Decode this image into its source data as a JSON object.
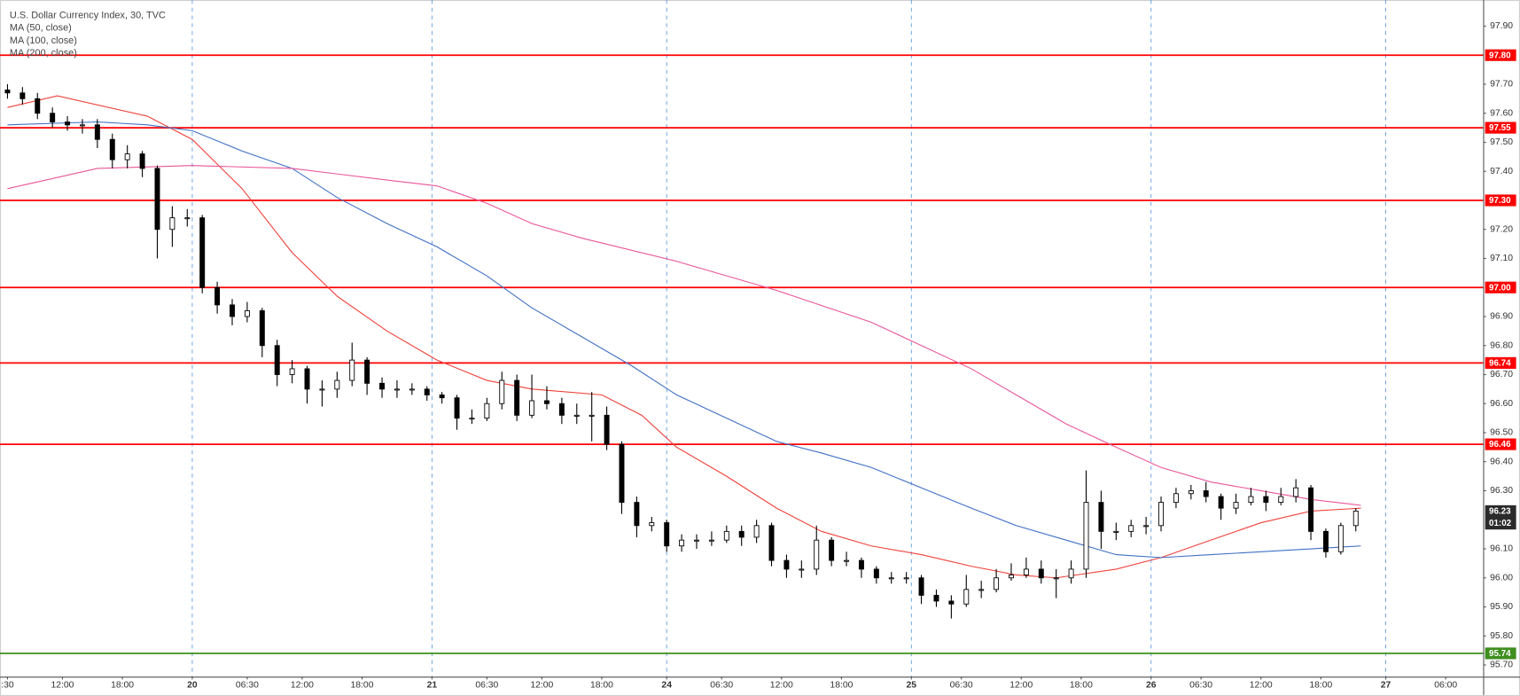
{
  "chart_data": {
    "type": "candlestick",
    "title": "U.S. Dollar Currency Index, 30, TVC",
    "x": [
      0,
      3,
      6,
      9,
      12,
      15,
      18,
      21,
      24,
      27,
      30,
      33,
      36,
      39,
      42,
      45,
      48,
      51,
      54,
      57,
      60,
      63,
      66,
      69,
      72,
      75,
      78,
      81,
      84,
      87,
      90,
      93,
      96,
      99,
      102,
      105,
      108,
      111,
      114,
      117,
      120,
      123,
      126,
      129,
      132,
      135,
      138,
      141,
      144,
      147,
      150,
      153,
      156,
      159,
      162,
      165,
      168,
      171,
      174,
      177,
      180,
      183,
      186,
      189,
      192,
      195,
      198,
      201,
      204,
      207,
      210,
      213,
      216,
      219,
      222,
      225,
      228,
      231,
      234,
      237,
      240,
      243,
      246,
      249,
      252,
      255,
      258,
      261,
      264,
      267,
      270
    ],
    "open": [
      97.68,
      97.67,
      97.65,
      97.6,
      97.57,
      97.56,
      97.56,
      97.51,
      97.44,
      97.46,
      97.41,
      97.2,
      97.24,
      97.24,
      97.0,
      96.94,
      96.9,
      96.92,
      96.8,
      96.7,
      96.72,
      96.65,
      96.65,
      96.68,
      96.75,
      96.67,
      96.65,
      96.65,
      96.65,
      96.63,
      96.62,
      96.55,
      96.55,
      96.6,
      96.68,
      96.56,
      96.61,
      96.6,
      96.56,
      96.56,
      96.56,
      96.46,
      96.26,
      96.18,
      96.19,
      96.11,
      96.13,
      96.13,
      96.13,
      96.16,
      96.14,
      96.18,
      96.06,
      96.03,
      96.03,
      96.13,
      96.06,
      96.06,
      96.03,
      96.0,
      96.0,
      96.0,
      95.94,
      95.92,
      95.91,
      95.96,
      95.96,
      96.0,
      96.01,
      96.03,
      96.0,
      96.0,
      96.03,
      96.26,
      96.16,
      96.16,
      96.18,
      96.18,
      96.26,
      96.29,
      96.3,
      96.28,
      96.24,
      96.26,
      96.28,
      96.26,
      96.28,
      96.31,
      96.16,
      96.09,
      96.18
    ],
    "high": [
      97.7,
      97.69,
      97.67,
      97.62,
      97.59,
      97.58,
      97.58,
      97.53,
      97.49,
      97.47,
      97.42,
      97.28,
      97.27,
      97.25,
      97.02,
      96.96,
      96.95,
      96.93,
      96.82,
      96.75,
      96.73,
      96.68,
      96.71,
      96.81,
      96.76,
      96.69,
      96.68,
      96.67,
      96.66,
      96.64,
      96.63,
      96.58,
      96.62,
      96.71,
      96.7,
      96.7,
      96.66,
      96.62,
      96.6,
      96.64,
      96.59,
      96.47,
      96.28,
      96.21,
      96.2,
      96.15,
      96.15,
      96.16,
      96.18,
      96.18,
      96.2,
      96.19,
      96.08,
      96.06,
      96.18,
      96.14,
      96.09,
      96.07,
      96.04,
      96.02,
      96.02,
      96.01,
      95.96,
      95.94,
      96.01,
      95.99,
      96.03,
      96.05,
      96.07,
      96.06,
      96.03,
      96.06,
      96.37,
      96.3,
      96.19,
      96.2,
      96.21,
      96.28,
      96.31,
      96.32,
      96.33,
      96.29,
      96.29,
      96.31,
      96.3,
      96.31,
      96.34,
      96.32,
      96.17,
      96.19,
      96.24
    ],
    "low": [
      97.65,
      97.63,
      97.58,
      97.55,
      97.54,
      97.53,
      97.48,
      97.41,
      97.41,
      97.38,
      97.1,
      97.14,
      97.21,
      96.98,
      96.91,
      96.87,
      96.88,
      96.76,
      96.66,
      96.67,
      96.6,
      96.59,
      96.62,
      96.66,
      96.63,
      96.62,
      96.62,
      96.63,
      96.61,
      96.6,
      96.51,
      96.53,
      96.54,
      96.58,
      96.54,
      96.55,
      96.58,
      96.53,
      96.53,
      96.47,
      96.44,
      96.22,
      96.14,
      96.16,
      96.09,
      96.09,
      96.1,
      96.11,
      96.12,
      96.11,
      96.12,
      96.04,
      96.0,
      96.0,
      96.01,
      96.04,
      96.04,
      96.0,
      95.98,
      95.98,
      95.98,
      95.91,
      95.9,
      95.86,
      95.9,
      95.93,
      95.95,
      95.99,
      96.0,
      95.98,
      95.93,
      95.98,
      96.0,
      96.1,
      96.13,
      96.14,
      96.15,
      96.16,
      96.24,
      96.27,
      96.26,
      96.2,
      96.22,
      96.25,
      96.23,
      96.25,
      96.26,
      96.13,
      96.07,
      96.08,
      96.16
    ],
    "close": [
      97.67,
      97.65,
      97.6,
      97.57,
      97.56,
      97.56,
      97.51,
      97.44,
      97.46,
      97.41,
      97.2,
      97.24,
      97.24,
      97.0,
      96.94,
      96.9,
      96.92,
      96.8,
      96.7,
      96.72,
      96.65,
      96.65,
      96.68,
      96.75,
      96.67,
      96.65,
      96.65,
      96.65,
      96.63,
      96.62,
      96.55,
      96.55,
      96.6,
      96.68,
      96.56,
      96.61,
      96.6,
      96.56,
      96.56,
      96.56,
      96.46,
      96.26,
      96.18,
      96.19,
      96.11,
      96.13,
      96.13,
      96.13,
      96.16,
      96.14,
      96.18,
      96.06,
      96.03,
      96.03,
      96.13,
      96.06,
      96.06,
      96.03,
      96.0,
      96.0,
      96.0,
      95.94,
      95.92,
      95.91,
      95.96,
      95.96,
      96.0,
      96.01,
      96.03,
      96.0,
      96.0,
      96.03,
      96.26,
      96.16,
      96.16,
      96.18,
      96.18,
      96.26,
      96.29,
      96.3,
      96.28,
      96.24,
      96.26,
      96.28,
      96.26,
      96.28,
      96.31,
      96.16,
      96.09,
      96.18,
      96.23
    ],
    "up_color": "#ffffff",
    "down_color": "#000000",
    "series": [
      {
        "name": "MA (50, close)",
        "color": "#f0413a",
        "x": [
          0,
          10,
          28,
          37,
          47,
          57,
          66,
          76,
          86,
          96,
          105,
          119,
          127,
          134,
          144,
          154,
          163,
          173,
          183,
          193,
          202,
          210,
          222,
          231,
          241,
          251,
          261,
          271
        ],
        "values": [
          97.62,
          97.66,
          97.59,
          97.51,
          97.34,
          97.12,
          96.97,
          96.85,
          96.75,
          96.68,
          96.65,
          96.63,
          96.56,
          96.45,
          96.35,
          96.24,
          96.16,
          96.11,
          96.08,
          96.04,
          96.01,
          96.0,
          96.03,
          96.07,
          96.13,
          96.19,
          96.23,
          96.24
        ]
      },
      {
        "name": "MA (100, close)",
        "color": "#3f6fc4",
        "x": [
          0,
          18,
          28,
          37,
          47,
          57,
          66,
          76,
          86,
          96,
          105,
          115,
          125,
          134,
          144,
          154,
          163,
          173,
          183,
          193,
          202,
          212,
          222,
          231,
          241,
          251,
          261,
          271
        ],
        "values": [
          97.56,
          97.57,
          97.56,
          97.54,
          97.47,
          97.41,
          97.31,
          97.22,
          97.14,
          97.04,
          96.93,
          96.83,
          96.73,
          96.63,
          96.55,
          96.47,
          96.43,
          96.38,
          96.31,
          96.24,
          96.18,
          96.13,
          96.08,
          96.07,
          96.08,
          96.09,
          96.1,
          96.11
        ]
      },
      {
        "name": "MA (200, close)",
        "color": "#e8559a",
        "x": [
          0,
          18,
          37,
          57,
          76,
          86,
          96,
          105,
          115,
          134,
          154,
          173,
          183,
          193,
          202,
          212,
          222,
          231,
          241,
          251,
          261,
          271
        ],
        "values": [
          97.34,
          97.41,
          97.42,
          97.41,
          97.37,
          97.35,
          97.29,
          97.22,
          97.17,
          97.09,
          96.99,
          96.88,
          96.8,
          96.72,
          96.63,
          96.53,
          96.45,
          96.38,
          96.33,
          96.3,
          96.27,
          96.25
        ]
      }
    ],
    "xlim": [
      -1.5,
      295.5
    ],
    "xticks": [
      {
        "value": 0,
        "label": ":30"
      },
      {
        "value": 11,
        "label": "12:00"
      },
      {
        "value": 23,
        "label": "18:00"
      },
      {
        "value": 37,
        "label": "20"
      },
      {
        "value": 48,
        "label": "06:30"
      },
      {
        "value": 59,
        "label": "12:00"
      },
      {
        "value": 71,
        "label": "18:00"
      },
      {
        "value": 85,
        "label": "21"
      },
      {
        "value": 96,
        "label": "06:30"
      },
      {
        "value": 107,
        "label": "12:00"
      },
      {
        "value": 119,
        "label": "18:00"
      },
      {
        "value": 132,
        "label": "24"
      },
      {
        "value": 143,
        "label": "06:30"
      },
      {
        "value": 155,
        "label": "12:00"
      },
      {
        "value": 167,
        "label": "18:00"
      },
      {
        "value": 181,
        "label": "25"
      },
      {
        "value": 191,
        "label": "06:30"
      },
      {
        "value": 203,
        "label": "12:00"
      },
      {
        "value": 215,
        "label": "18:00"
      },
      {
        "value": 229,
        "label": "26"
      },
      {
        "value": 239,
        "label": "06:30"
      },
      {
        "value": 251,
        "label": "12:00"
      },
      {
        "value": 263,
        "label": "18:00"
      },
      {
        "value": 276,
        "label": "27"
      },
      {
        "value": 288,
        "label": "06:00"
      }
    ],
    "ylim": [
      95.66,
      97.99
    ],
    "yticks": [
      {
        "value": 97.9,
        "label": "97.90"
      },
      {
        "value": 97.7,
        "label": "97.70"
      },
      {
        "value": 97.6,
        "label": "97.60"
      },
      {
        "value": 97.5,
        "label": "97.50"
      },
      {
        "value": 97.4,
        "label": "97.40"
      },
      {
        "value": 97.2,
        "label": "97.20"
      },
      {
        "value": 97.1,
        "label": "97.10"
      },
      {
        "value": 96.9,
        "label": "96.90"
      },
      {
        "value": 96.8,
        "label": "96.80"
      },
      {
        "value": 96.7,
        "label": "96.70"
      },
      {
        "value": 96.6,
        "label": "96.60"
      },
      {
        "value": 96.5,
        "label": "96.50"
      },
      {
        "value": 96.4,
        "label": "96.40"
      },
      {
        "value": 96.3,
        "label": "96.30"
      },
      {
        "value": 96.1,
        "label": "96.10"
      },
      {
        "value": 96,
        "label": "96.00"
      },
      {
        "value": 95.9,
        "label": "95.90"
      },
      {
        "value": 95.8,
        "label": "95.80"
      },
      {
        "value": 95.7,
        "label": "95.70"
      }
    ],
    "levels": [
      {
        "value": 97.8,
        "label": "97.80",
        "color": "#ff0000"
      },
      {
        "value": 97.55,
        "label": "97.55",
        "color": "#ff0000"
      },
      {
        "value": 97.3,
        "label": "97.30",
        "color": "#ff0000"
      },
      {
        "value": 97,
        "label": "97.00",
        "color": "#ff0000"
      },
      {
        "value": 96.74,
        "label": "96.74",
        "color": "#ff0000"
      },
      {
        "value": 96.46,
        "label": "96.46",
        "color": "#ff0000"
      },
      {
        "value": 95.74,
        "label": "95.74",
        "color": "#3e8e1e"
      }
    ],
    "last_price": {
      "value": 96.23,
      "label": "96.23",
      "countdown": "01:02",
      "color": "#2b2b2b"
    },
    "grid": false
  }
}
